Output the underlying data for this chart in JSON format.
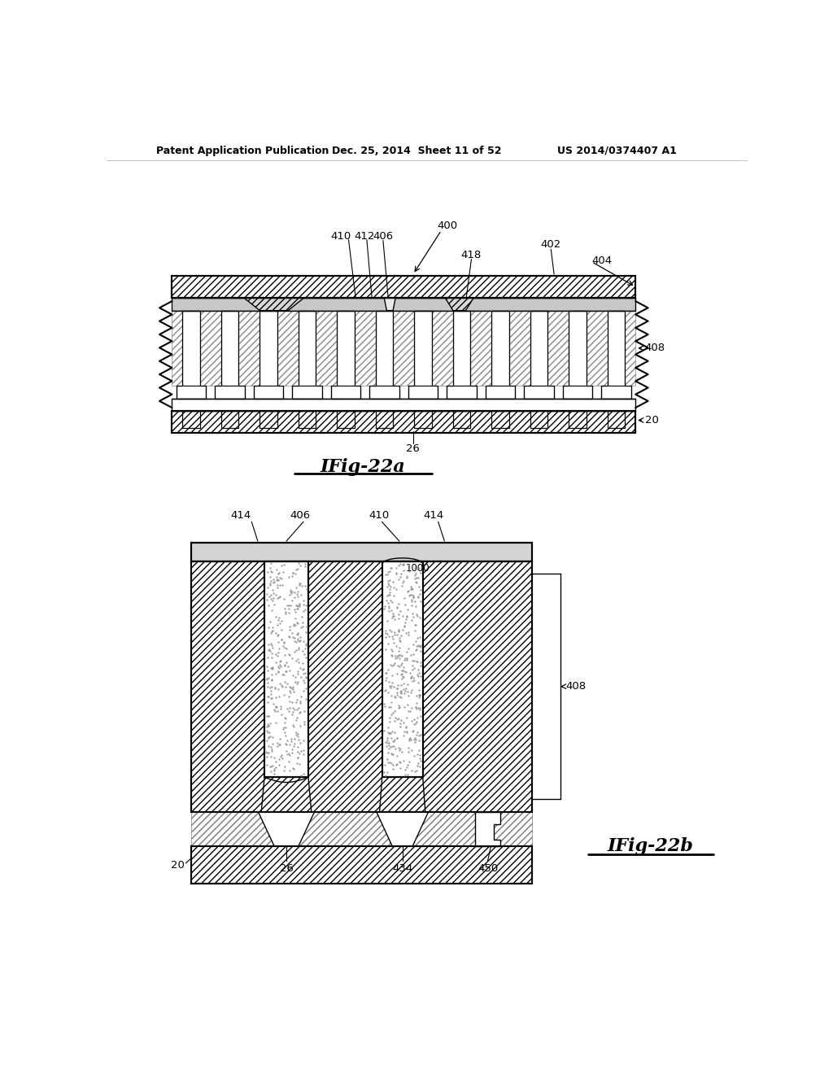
{
  "bg_color": "#ffffff",
  "header_text": "Patent Application Publication",
  "header_date": "Dec. 25, 2014  Sheet 11 of 52",
  "header_patent": "US 2014/0374407 A1",
  "fig22a_label": "IFig-22a",
  "fig22b_label": "IFig-22b"
}
